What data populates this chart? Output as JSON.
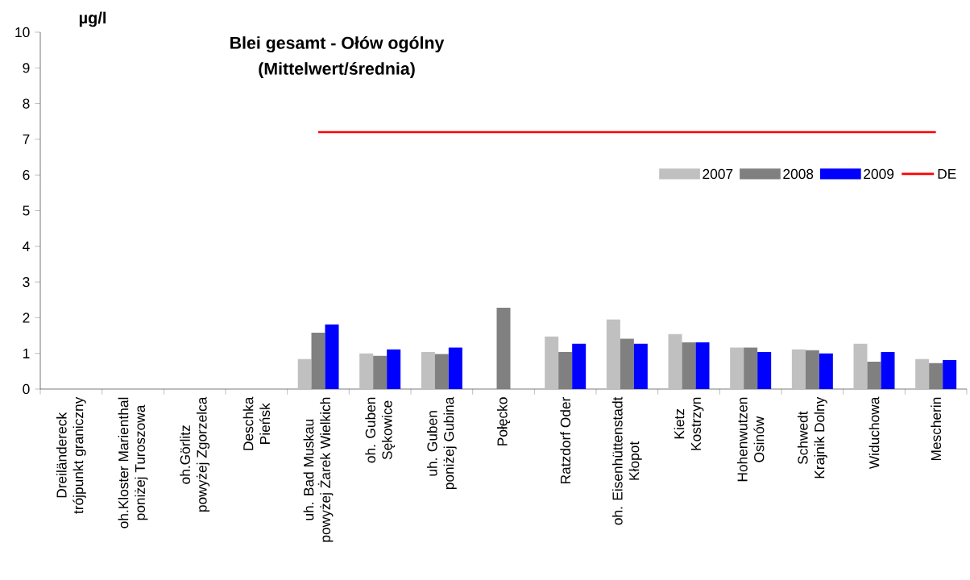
{
  "chart_data": {
    "type": "bar",
    "title": "Blei gesamt - Ołów ogólny\n(Mittelwert/średnia)",
    "ylabel": "µg/l",
    "categories": [
      "Dreiländereck\ntrójpunkt graniczny",
      "oh.Kloster Marienthal\nponiżej Turoszowa",
      "oh.Görlitz\npowyżej Zgorzelca",
      "Deschka\nPieńsk",
      "uh. Bad Muskau\npowyżej Żarek Wielkich",
      "oh. Guben\nSękowice",
      "uh. Guben\nponiżej Gubina",
      "Połęcko",
      "Ratzdorf Oder",
      "oh. Eisenhüttenstadt\nKłopot",
      "Kietz\nKostrzyn",
      "Hohenwutzen\nOsinów",
      "Schwedt\nKrajnik Dolny",
      "Widuchowa",
      "Mescherin"
    ],
    "series": [
      {
        "name": "2007",
        "color": "#c0c0c0",
        "values": [
          null,
          null,
          null,
          null,
          0.84,
          1.0,
          1.04,
          null,
          1.47,
          1.95,
          1.54,
          1.16,
          1.11,
          1.27,
          0.84
        ]
      },
      {
        "name": "2008",
        "color": "#808080",
        "values": [
          null,
          null,
          null,
          null,
          1.58,
          0.93,
          0.98,
          2.28,
          1.04,
          1.41,
          1.31,
          1.16,
          1.09,
          0.77,
          0.73
        ]
      },
      {
        "name": "2009",
        "color": "#0000ff",
        "values": [
          null,
          null,
          null,
          null,
          1.81,
          1.11,
          1.16,
          null,
          1.27,
          1.27,
          1.31,
          1.04,
          1.0,
          1.04,
          0.81
        ]
      },
      {
        "name": "DE",
        "type": "line",
        "color": "#ff0000",
        "values": [
          null,
          null,
          null,
          null,
          7.2,
          7.2,
          7.2,
          7.2,
          7.2,
          7.2,
          7.2,
          7.2,
          7.2,
          7.2,
          7.2
        ]
      }
    ],
    "ylim": [
      0,
      10
    ],
    "yticks": [
      0,
      1,
      2,
      3,
      4,
      5,
      6,
      7,
      8,
      9,
      10
    ],
    "legend": "right",
    "grid": false
  }
}
